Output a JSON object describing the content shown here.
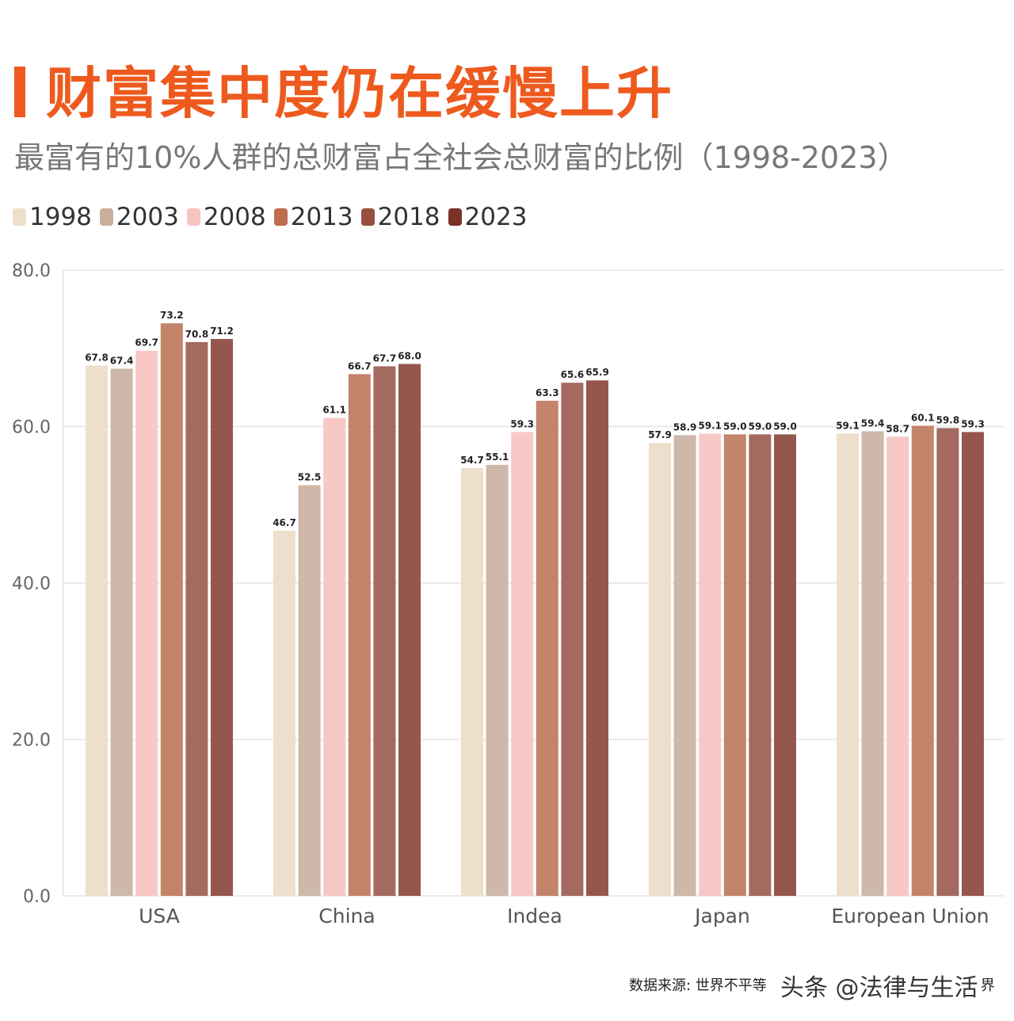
{
  "title": "财富集中度仍在缓慢上升",
  "subtitle": "最富有的10%人群的总财富占全社会总财富的比例（1998-2023）",
  "footer": {
    "source_visible_start": "数据来源: 世界不平等",
    "source_visible_end": "界",
    "watermark": "头条 @法律与生活"
  },
  "chart_data": {
    "type": "bar",
    "title": "财富集中度仍在缓慢上升",
    "subtitle": "最富有的10%人群的总财富占全社会总财富的比例（1998-2023）",
    "categories": [
      "USA",
      "China",
      "Indea",
      "Japan",
      "European Union"
    ],
    "series": [
      {
        "name": "1998",
        "color": "#EEDFCC",
        "legend_color": "#EEDFCC",
        "values": [
          67.8,
          46.7,
          54.7,
          57.9,
          59.1
        ]
      },
      {
        "name": "2003",
        "color": "#CDB8A9",
        "legend_color": "#C9B09D",
        "values": [
          67.4,
          52.5,
          55.1,
          58.9,
          59.4
        ]
      },
      {
        "name": "2008",
        "color": "#F8C8C6",
        "legend_color": "#F6C3C0",
        "values": [
          69.7,
          61.1,
          59.3,
          59.1,
          58.7
        ]
      },
      {
        "name": "2013",
        "color": "#C3846A",
        "legend_color": "#C06B4D",
        "values": [
          73.2,
          66.7,
          63.3,
          59.0,
          60.1
        ]
      },
      {
        "name": "2018",
        "color": "#A4695F",
        "legend_color": "#97503F",
        "values": [
          70.8,
          67.7,
          65.6,
          59.0,
          59.8
        ]
      },
      {
        "name": "2023",
        "color": "#95574D",
        "legend_color": "#7A3226",
        "values": [
          71.2,
          68.0,
          65.9,
          59.0,
          59.3
        ]
      }
    ],
    "yticks": [
      "0.0",
      "20.0",
      "40.0",
      "60.0",
      "80.0"
    ],
    "ylim": [
      0,
      80
    ],
    "grid": true,
    "legend_placement": "top-left",
    "data_labels": true
  }
}
